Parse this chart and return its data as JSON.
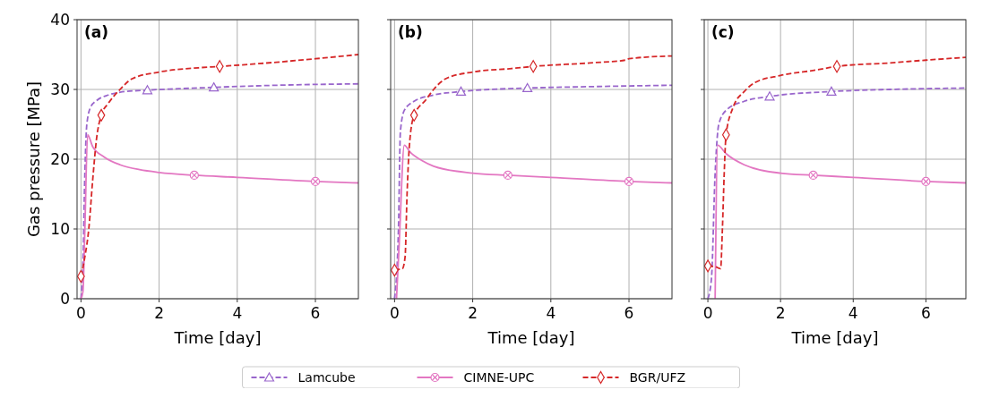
{
  "chart_data": [
    {
      "type": "line",
      "title": "(a)",
      "xlabel": "Time [day]",
      "ylabel": "Gas pressure [MPa]",
      "xlim": [
        -0.1,
        7.1
      ],
      "ylim": [
        0,
        40
      ],
      "xticks": [
        0,
        2,
        4,
        6
      ],
      "yticks": [
        0,
        10,
        20,
        30,
        40
      ],
      "grid": true,
      "legend": "bottom",
      "series": [
        {
          "name": "Lamcube",
          "color": "#9966cc",
          "line_style": "dashed",
          "x": [
            0,
            0.05,
            0.1,
            0.15,
            0.25,
            0.4,
            0.7,
            1,
            1.7,
            2.5,
            3.4,
            5,
            7.1
          ],
          "values": [
            0,
            5,
            18,
            25,
            27.5,
            28.4,
            29.2,
            29.6,
            29.9,
            30.1,
            30.3,
            30.6,
            30.8
          ]
        },
        {
          "name": "CIMNE-UPC",
          "color": "#e377c2",
          "line_style": "solid",
          "x": [
            0,
            0.05,
            0.1,
            0.17,
            0.3,
            0.6,
            1,
            1.5,
            2,
            2.9,
            4,
            6,
            7.1
          ],
          "values": [
            0,
            1,
            10,
            23.5,
            21.8,
            20.3,
            19.2,
            18.5,
            18.1,
            17.7,
            17.4,
            16.8,
            16.6
          ]
        },
        {
          "name": "BGR/UFZ",
          "color": "#d62728",
          "line_style": "dashed",
          "x": [
            0,
            0.1,
            0.2,
            0.3,
            0.4,
            0.52,
            0.7,
            1,
            1.3,
            2,
            3,
            3.55,
            5,
            6,
            7.1
          ],
          "values": [
            3.2,
            6,
            10,
            17,
            23,
            26.3,
            28,
            30,
            31.5,
            32.5,
            33.1,
            33.3,
            33.9,
            34.4,
            35
          ]
        },
        {
          "type": "scatter",
          "color": "#9966cc",
          "marker": "triangle",
          "x": [
            1.7,
            3.4
          ],
          "values": [
            29.9,
            30.3
          ]
        },
        {
          "type": "scatter",
          "color": "#e377c2",
          "marker": "circle",
          "x": [
            2.9,
            6
          ],
          "values": [
            17.7,
            16.8
          ]
        },
        {
          "type": "scatter",
          "color": "#d62728",
          "marker": "diamond",
          "x": [
            0,
            0.52,
            3.55
          ],
          "values": [
            3.2,
            26.3,
            33.3
          ]
        }
      ]
    },
    {
      "type": "line",
      "title": "(b)",
      "xlabel": "Time [day]",
      "xlim": [
        -0.1,
        7.1
      ],
      "ylim": [
        0,
        40
      ],
      "xticks": [
        0,
        2,
        4,
        6
      ],
      "yticks": [
        0,
        10,
        20,
        30,
        40
      ],
      "grid": true,
      "tick_labels": "x",
      "series": [
        {
          "color": "#9966cc",
          "line_style": "dashed",
          "x": [
            0,
            0.1,
            0.15,
            0.25,
            0.5,
            1,
            1.7,
            3.4,
            5,
            7.1
          ],
          "values": [
            0,
            10,
            24,
            27,
            28.3,
            29.2,
            29.7,
            30.2,
            30.4,
            30.6
          ]
        },
        {
          "color": "#e377c2",
          "line_style": "solid",
          "x": [
            0.05,
            0.12,
            0.25,
            0.4,
            0.7,
            1,
            2,
            2.9,
            4,
            6,
            7.1
          ],
          "values": [
            0,
            8,
            22,
            21,
            19.8,
            19,
            18,
            17.7,
            17.4,
            16.8,
            16.6
          ]
        },
        {
          "color": "#d62728",
          "line_style": "dashed",
          "x": [
            0,
            0.1,
            0.2,
            0.27,
            0.32,
            0.38,
            0.5,
            0.8,
            1,
            1.3,
            2,
            3,
            3.55,
            5,
            5.9,
            6,
            7.1
          ],
          "values": [
            4.1,
            4.2,
            4.3,
            6,
            15,
            22,
            26.3,
            28.5,
            30,
            31.5,
            32.5,
            33,
            33.3,
            33.8,
            34.2,
            34.4,
            34.8
          ]
        },
        {
          "type": "scatter",
          "color": "#9966cc",
          "marker": "triangle",
          "x": [
            1.7,
            3.4
          ],
          "values": [
            29.7,
            30.2
          ]
        },
        {
          "type": "scatter",
          "color": "#e377c2",
          "marker": "circle",
          "x": [
            2.9,
            6
          ],
          "values": [
            17.7,
            16.8
          ]
        },
        {
          "type": "scatter",
          "color": "#d62728",
          "marker": "diamond",
          "x": [
            0,
            0.5,
            3.55
          ],
          "values": [
            4.1,
            26.3,
            33.3
          ]
        }
      ]
    },
    {
      "type": "line",
      "title": "(c)",
      "xlabel": "Time [day]",
      "xlim": [
        -0.1,
        7.1
      ],
      "ylim": [
        0,
        40
      ],
      "xticks": [
        0,
        2,
        4,
        6
      ],
      "yticks": [
        0,
        10,
        20,
        30,
        40
      ],
      "grid": true,
      "tick_labels": "x",
      "series": [
        {
          "color": "#9966cc",
          "line_style": "dashed",
          "x": [
            0,
            0.1,
            0.2,
            0.3,
            0.5,
            1,
            1.7,
            3.4,
            5,
            7.1
          ],
          "values": [
            0,
            3,
            18,
            25,
            27,
            28.3,
            29,
            29.7,
            30,
            30.2
          ]
        },
        {
          "color": "#e377c2",
          "line_style": "solid",
          "x": [
            0.2,
            0.27,
            0.5,
            1,
            2,
            2.9,
            4,
            6,
            7.1
          ],
          "values": [
            0,
            22,
            20.8,
            19.2,
            18,
            17.7,
            17.4,
            16.8,
            16.6
          ]
        },
        {
          "color": "#d62728",
          "line_style": "dashed",
          "x": [
            0,
            0.2,
            0.35,
            0.4,
            0.45,
            0.5,
            0.7,
            1,
            1.3,
            2,
            3,
            3.55,
            5,
            6,
            7.1
          ],
          "values": [
            4.7,
            4.6,
            4.3,
            10,
            18,
            23.5,
            27.5,
            29.7,
            31,
            32,
            32.8,
            33.3,
            33.8,
            34.2,
            34.6
          ]
        },
        {
          "type": "scatter",
          "color": "#9966cc",
          "marker": "triangle",
          "x": [
            1.7,
            3.4
          ],
          "values": [
            29,
            29.7
          ]
        },
        {
          "type": "scatter",
          "color": "#e377c2",
          "marker": "circle",
          "x": [
            2.9,
            6
          ],
          "values": [
            17.7,
            16.8
          ]
        },
        {
          "type": "scatter",
          "color": "#d62728",
          "marker": "diamond",
          "x": [
            0,
            0.5,
            3.55
          ],
          "values": [
            4.7,
            23.5,
            33.3
          ]
        }
      ]
    }
  ]
}
